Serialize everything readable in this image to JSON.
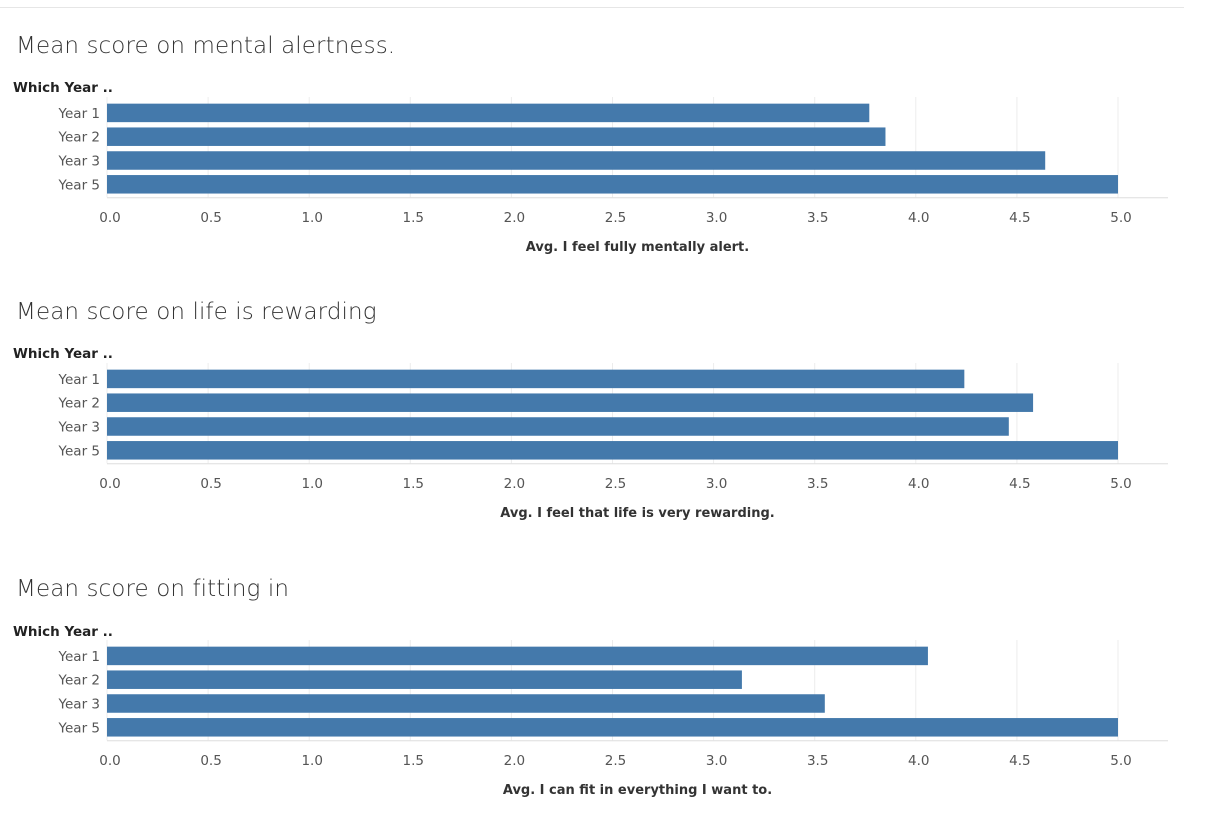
{
  "colors": {
    "bar": "#4479AB",
    "grid": "#ececec",
    "text": "#555555"
  },
  "chart_data": [
    {
      "type": "bar",
      "orientation": "horizontal",
      "title": "Mean score on mental alertness.",
      "row_header": "Which Year ..",
      "categories": [
        "Year 1",
        "Year 2",
        "Year 3",
        "Year 5"
      ],
      "values": [
        3.77,
        3.85,
        4.64,
        5.0
      ],
      "xlabel": "Avg. I feel fully mentally alert.",
      "xlim": [
        0,
        5.0
      ],
      "ticks": [
        "0.0",
        "0.5",
        "1.0",
        "1.5",
        "2.0",
        "2.5",
        "3.0",
        "3.5",
        "4.0",
        "4.5",
        "5.0"
      ],
      "grid": true
    },
    {
      "type": "bar",
      "orientation": "horizontal",
      "title": "Mean score on life is rewarding",
      "row_header": "Which Year ..",
      "categories": [
        "Year 1",
        "Year 2",
        "Year 3",
        "Year 5"
      ],
      "values": [
        4.24,
        4.58,
        4.46,
        5.0
      ],
      "xlabel": "Avg. I feel that life is very rewarding.",
      "xlim": [
        0,
        5.0
      ],
      "ticks": [
        "0.0",
        "0.5",
        "1.0",
        "1.5",
        "2.0",
        "2.5",
        "3.0",
        "3.5",
        "4.0",
        "4.5",
        "5.0"
      ],
      "grid": true
    },
    {
      "type": "bar",
      "orientation": "horizontal",
      "title": "Mean score on fitting in",
      "row_header": "Which Year ..",
      "categories": [
        "Year 1",
        "Year 2",
        "Year 3",
        "Year 5"
      ],
      "values": [
        4.06,
        3.14,
        3.55,
        5.0
      ],
      "xlabel": "Avg. I can fit in everything I want to.",
      "xlim": [
        0,
        5.0
      ],
      "ticks": [
        "0.0",
        "0.5",
        "1.0",
        "1.5",
        "2.0",
        "2.5",
        "3.0",
        "3.5",
        "4.0",
        "4.5",
        "5.0"
      ],
      "grid": true
    }
  ]
}
